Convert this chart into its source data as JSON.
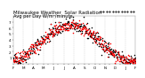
{
  "title": "Milwaukee Weather  Solar Radiation",
  "subtitle": "Avg per Day W/m²/minute",
  "title_fontsize": 4.0,
  "bg_color": "#ffffff",
  "plot_bg": "#ffffff",
  "grid_color": "#cccccc",
  "ylim": [
    0,
    8
  ],
  "yticks": [
    1,
    2,
    3,
    4,
    5,
    6,
    7
  ],
  "legend_box_color": "#ff0000",
  "red_color": "#ff0000",
  "black_color": "#000000",
  "marker_size": 1.2,
  "vline_positions": [
    32,
    60,
    91,
    121,
    152,
    182,
    213,
    244,
    274,
    305,
    335
  ],
  "xtick_positions": [
    1,
    15,
    32,
    46,
    60,
    74,
    91,
    105,
    121,
    135,
    152,
    166,
    182,
    196,
    213,
    227,
    244,
    258,
    274,
    288,
    305,
    319,
    335,
    349,
    365
  ],
  "xtick_labels": [
    "F",
    "",
    "M",
    "",
    "A",
    "",
    "M",
    "",
    "J",
    "",
    "J",
    "",
    "A",
    "",
    "S",
    "",
    "O",
    "",
    "N",
    "",
    "D",
    "",
    "J",
    "",
    "F"
  ],
  "tick_fontsize": 3.0,
  "ytick_fontsize": 3.0
}
